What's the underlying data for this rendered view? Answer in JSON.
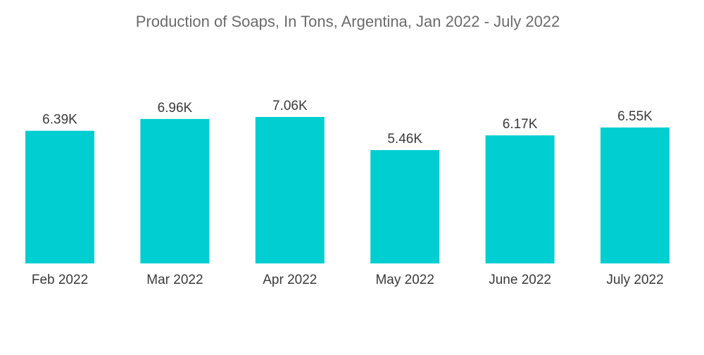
{
  "chart_data": {
    "type": "bar",
    "title": "Production of Soaps, In Tons, Argentina, Jan 2022 - July 2022",
    "categories": [
      "Feb 2022",
      "Mar 2022",
      "Apr 2022",
      "May 2022",
      "June 2022",
      "July 2022"
    ],
    "values": [
      6390,
      6960,
      7060,
      5460,
      6170,
      6550
    ],
    "data_labels": [
      "6.39K",
      "6.96K",
      "7.06K",
      "5.46K",
      "6.17K",
      "6.55K"
    ],
    "xlabel": "",
    "ylabel": "",
    "ylim": [
      0,
      7060
    ],
    "grid": false,
    "legend": "none",
    "bar_color": "#00ced1"
  }
}
